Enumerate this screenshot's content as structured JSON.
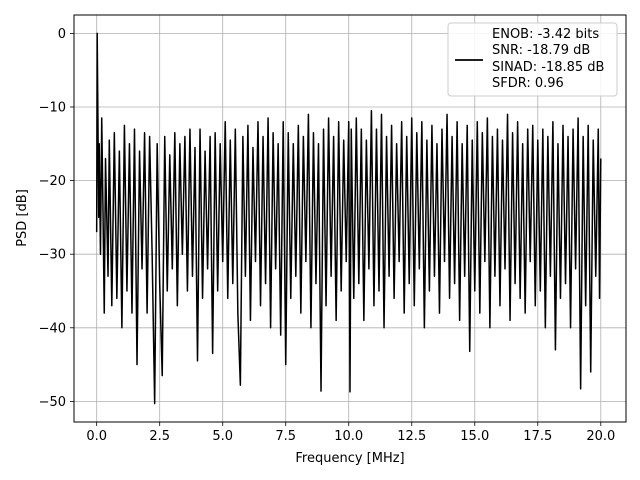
{
  "chart_data": {
    "type": "line",
    "xlabel": "Frequency [MHz]",
    "ylabel": "PSD [dB]",
    "xlim": [
      -0.9,
      21.0
    ],
    "ylim": [
      -52.8,
      2.5
    ],
    "xticks": [
      0.0,
      2.5,
      5.0,
      7.5,
      10.0,
      12.5,
      15.0,
      17.5,
      20.0
    ],
    "xtick_labels": [
      "0.0",
      "2.5",
      "5.0",
      "7.5",
      "10.0",
      "12.5",
      "15.0",
      "17.5",
      "20.0"
    ],
    "yticks": [
      0,
      -10,
      -20,
      -30,
      -40,
      -50
    ],
    "ytick_labels": [
      "0",
      "−10",
      "−20",
      "−30",
      "−40",
      "−50"
    ],
    "grid": true,
    "legend_position": "top-right",
    "series": [
      {
        "color": "#000000",
        "legend_lines": [
          "ENOB: -3.42 bits",
          "SNR: -18.79 dB",
          "SINAD: -18.85 dB",
          "SFDR: 0.96"
        ],
        "points": [
          [
            0.0,
            -27.0
          ],
          [
            0.02,
            0.0
          ],
          [
            0.05,
            -12.0
          ],
          [
            0.08,
            -25.0
          ],
          [
            0.1,
            -15.0
          ],
          [
            0.15,
            -30.0
          ],
          [
            0.2,
            -11.5
          ],
          [
            0.25,
            -24.0
          ],
          [
            0.3,
            -38.0
          ],
          [
            0.35,
            -17.0
          ],
          [
            0.45,
            -33.0
          ],
          [
            0.5,
            -14.5
          ],
          [
            0.6,
            -37.0
          ],
          [
            0.7,
            -13.5
          ],
          [
            0.8,
            -36.0
          ],
          [
            0.9,
            -16.0
          ],
          [
            1.0,
            -40.0
          ],
          [
            1.1,
            -12.5
          ],
          [
            1.2,
            -35.0
          ],
          [
            1.3,
            -15.0
          ],
          [
            1.4,
            -38.0
          ],
          [
            1.5,
            -13.0
          ],
          [
            1.6,
            -45.0
          ],
          [
            1.7,
            -16.0
          ],
          [
            1.8,
            -32.0
          ],
          [
            1.9,
            -13.5
          ],
          [
            2.0,
            -38.0
          ],
          [
            2.1,
            -14.0
          ],
          [
            2.2,
            -30.0
          ],
          [
            2.3,
            -50.3
          ],
          [
            2.4,
            -15.0
          ],
          [
            2.5,
            -34.0
          ],
          [
            2.6,
            -46.5
          ],
          [
            2.7,
            -14.0
          ],
          [
            2.8,
            -35.0
          ],
          [
            2.9,
            -16.5
          ],
          [
            3.0,
            -32.0
          ],
          [
            3.1,
            -13.5
          ],
          [
            3.2,
            -37.0
          ],
          [
            3.3,
            -15.0
          ],
          [
            3.4,
            -30.0
          ],
          [
            3.5,
            -14.0
          ],
          [
            3.6,
            -35.0
          ],
          [
            3.7,
            -13.0
          ],
          [
            3.8,
            -33.0
          ],
          [
            3.9,
            -15.5
          ],
          [
            4.0,
            -44.5
          ],
          [
            4.1,
            -13.0
          ],
          [
            4.2,
            -36.0
          ],
          [
            4.3,
            -16.0
          ],
          [
            4.4,
            -32.0
          ],
          [
            4.5,
            -14.0
          ],
          [
            4.6,
            -43.5
          ],
          [
            4.7,
            -13.5
          ],
          [
            4.8,
            -35.0
          ],
          [
            4.9,
            -15.0
          ],
          [
            5.0,
            -31.0
          ],
          [
            5.1,
            -12.0
          ],
          [
            5.2,
            -36.0
          ],
          [
            5.3,
            -14.5
          ],
          [
            5.4,
            -34.0
          ],
          [
            5.5,
            -13.0
          ],
          [
            5.6,
            -38.0
          ],
          [
            5.7,
            -47.8
          ],
          [
            5.8,
            -14.0
          ],
          [
            5.9,
            -33.0
          ],
          [
            6.0,
            -12.5
          ],
          [
            6.1,
            -39.0
          ],
          [
            6.2,
            -15.5
          ],
          [
            6.3,
            -31.0
          ],
          [
            6.4,
            -12.0
          ],
          [
            6.5,
            -37.0
          ],
          [
            6.6,
            -14.0
          ],
          [
            6.7,
            -34.0
          ],
          [
            6.8,
            -11.5
          ],
          [
            6.9,
            -40.0
          ],
          [
            7.0,
            -13.5
          ],
          [
            7.1,
            -32.0
          ],
          [
            7.2,
            -15.0
          ],
          [
            7.3,
            -41.0
          ],
          [
            7.4,
            -12.0
          ],
          [
            7.5,
            -45.0
          ],
          [
            7.6,
            -13.5
          ],
          [
            7.7,
            -36.0
          ],
          [
            7.8,
            -15.0
          ],
          [
            7.9,
            -33.0
          ],
          [
            8.0,
            -12.5
          ],
          [
            8.1,
            -38.0
          ],
          [
            8.2,
            -14.0
          ],
          [
            8.3,
            -31.0
          ],
          [
            8.4,
            -11.0
          ],
          [
            8.5,
            -40.0
          ],
          [
            8.6,
            -13.5
          ],
          [
            8.7,
            -34.0
          ],
          [
            8.8,
            -15.0
          ],
          [
            8.9,
            -48.6
          ],
          [
            9.0,
            -13.0
          ],
          [
            9.1,
            -37.0
          ],
          [
            9.2,
            -11.5
          ],
          [
            9.3,
            -33.0
          ],
          [
            9.4,
            -14.0
          ],
          [
            9.5,
            -39.0
          ],
          [
            9.6,
            -12.0
          ],
          [
            9.7,
            -35.0
          ],
          [
            9.8,
            -14.5
          ],
          [
            9.9,
            -31.0
          ],
          [
            10.0,
            -12.0
          ],
          [
            10.05,
            -48.7
          ],
          [
            10.1,
            -13.0
          ],
          [
            10.2,
            -36.0
          ],
          [
            10.3,
            -11.5
          ],
          [
            10.4,
            -34.0
          ],
          [
            10.5,
            -13.0
          ],
          [
            10.6,
            -39.0
          ],
          [
            10.7,
            -14.5
          ],
          [
            10.8,
            -32.0
          ],
          [
            10.9,
            -10.5
          ],
          [
            11.0,
            -37.0
          ],
          [
            11.1,
            -13.0
          ],
          [
            11.2,
            -35.0
          ],
          [
            11.3,
            -11.0
          ],
          [
            11.4,
            -40.0
          ],
          [
            11.5,
            -14.0
          ],
          [
            11.6,
            -33.0
          ],
          [
            11.7,
            -12.5
          ],
          [
            11.8,
            -36.0
          ],
          [
            11.9,
            -15.0
          ],
          [
            12.0,
            -31.0
          ],
          [
            12.1,
            -12.0
          ],
          [
            12.2,
            -38.0
          ],
          [
            12.3,
            -14.0
          ],
          [
            12.4,
            -34.0
          ],
          [
            12.5,
            -11.5
          ],
          [
            12.6,
            -37.0
          ],
          [
            12.7,
            -13.5
          ],
          [
            12.8,
            -32.0
          ],
          [
            12.9,
            -12.0
          ],
          [
            13.0,
            -40.0
          ],
          [
            13.1,
            -14.5
          ],
          [
            13.2,
            -35.0
          ],
          [
            13.3,
            -12.5
          ],
          [
            13.4,
            -33.0
          ],
          [
            13.5,
            -15.0
          ],
          [
            13.6,
            -38.0
          ],
          [
            13.7,
            -13.0
          ],
          [
            13.8,
            -31.0
          ],
          [
            13.9,
            -11.0
          ],
          [
            14.0,
            -36.0
          ],
          [
            14.1,
            -14.0
          ],
          [
            14.2,
            -34.0
          ],
          [
            14.3,
            -12.0
          ],
          [
            14.4,
            -39.0
          ],
          [
            14.5,
            -15.0
          ],
          [
            14.6,
            -33.0
          ],
          [
            14.7,
            -12.5
          ],
          [
            14.8,
            -43.2
          ],
          [
            14.9,
            -14.5
          ],
          [
            15.0,
            -35.0
          ],
          [
            15.1,
            -12.0
          ],
          [
            15.2,
            -38.0
          ],
          [
            15.3,
            -13.5
          ],
          [
            15.4,
            -31.0
          ],
          [
            15.5,
            -11.5
          ],
          [
            15.6,
            -40.0
          ],
          [
            15.7,
            -14.0
          ],
          [
            15.8,
            -33.0
          ],
          [
            15.9,
            -13.0
          ],
          [
            16.0,
            -37.0
          ],
          [
            16.1,
            -14.5
          ],
          [
            16.2,
            -32.0
          ],
          [
            16.3,
            -11.0
          ],
          [
            16.4,
            -39.0
          ],
          [
            16.5,
            -13.5
          ],
          [
            16.6,
            -34.0
          ],
          [
            16.7,
            -12.0
          ],
          [
            16.8,
            -36.0
          ],
          [
            16.9,
            -15.0
          ],
          [
            17.0,
            -38.0
          ],
          [
            17.1,
            -13.0
          ],
          [
            17.2,
            -31.0
          ],
          [
            17.3,
            -12.5
          ],
          [
            17.4,
            -37.0
          ],
          [
            17.5,
            -14.5
          ],
          [
            17.6,
            -35.0
          ],
          [
            17.7,
            -13.0
          ],
          [
            17.8,
            -40.0
          ],
          [
            17.9,
            -14.0
          ],
          [
            18.0,
            -33.0
          ],
          [
            18.1,
            -12.0
          ],
          [
            18.2,
            -43.0
          ],
          [
            18.3,
            -15.0
          ],
          [
            18.4,
            -36.0
          ],
          [
            18.5,
            -12.5
          ],
          [
            18.6,
            -34.0
          ],
          [
            18.7,
            -14.0
          ],
          [
            18.8,
            -40.0
          ],
          [
            18.9,
            -13.0
          ],
          [
            19.0,
            -32.0
          ],
          [
            19.1,
            -11.5
          ],
          [
            19.2,
            -48.3
          ],
          [
            19.3,
            -14.0
          ],
          [
            19.4,
            -37.0
          ],
          [
            19.5,
            -12.5
          ],
          [
            19.6,
            -46.0
          ],
          [
            19.7,
            -14.5
          ],
          [
            19.8,
            -33.0
          ],
          [
            19.9,
            -13.0
          ],
          [
            19.95,
            -36.0
          ],
          [
            20.0,
            -17.0
          ]
        ]
      }
    ]
  }
}
